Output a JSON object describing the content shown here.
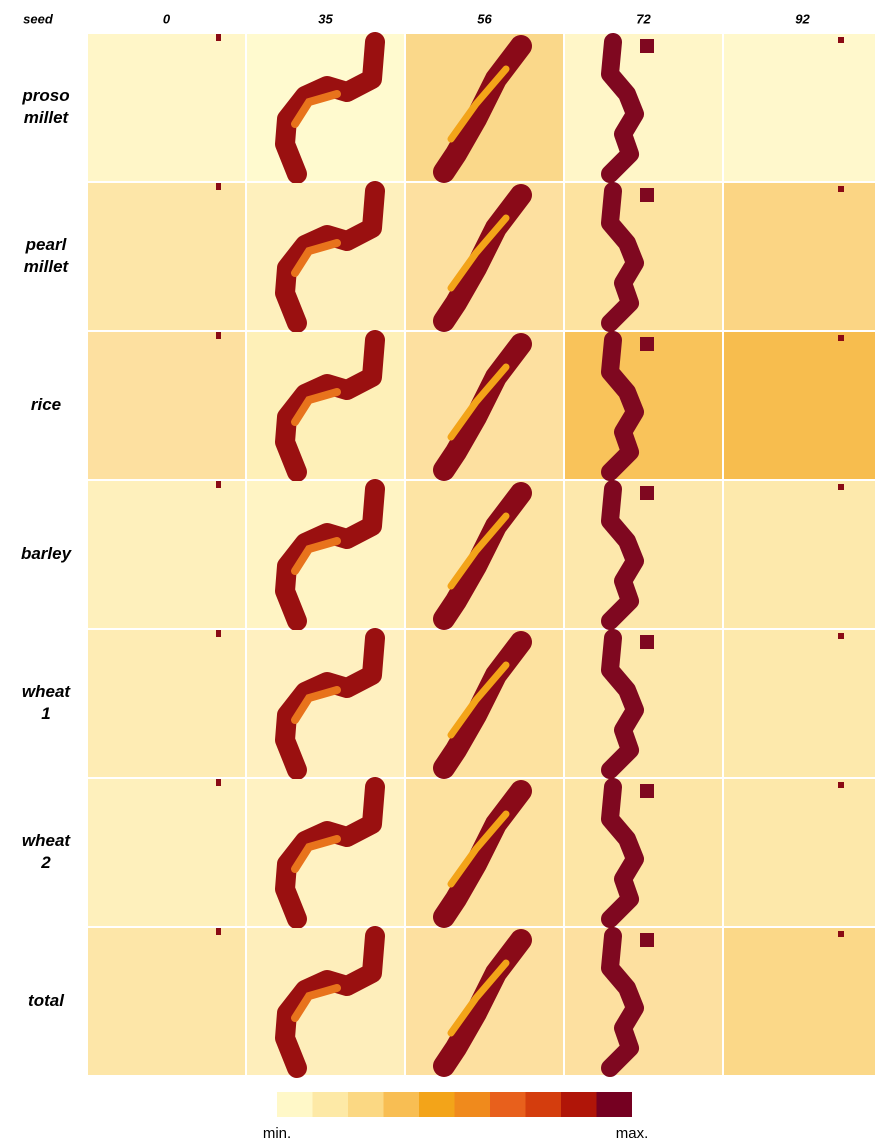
{
  "header": {
    "corner": "seed",
    "columns": [
      "0",
      "35",
      "56",
      "72",
      "92"
    ]
  },
  "rows": [
    {
      "label": [
        "proso",
        "millet"
      ],
      "colors": [
        "#fff6c8",
        "#fffacf",
        "#fad88a",
        "#fff6c8",
        "#fff8cc"
      ]
    },
    {
      "label": [
        "pearl",
        "millet"
      ],
      "colors": [
        "#fde6a8",
        "#fef0bd",
        "#fde0a0",
        "#fde3a0",
        "#fbd584"
      ]
    },
    {
      "label": [
        "rice"
      ],
      "colors": [
        "#fde0a0",
        "#fef0b8",
        "#fde0a0",
        "#f9c35a",
        "#f7bd4e"
      ]
    },
    {
      "label": [
        "barley"
      ],
      "colors": [
        "#fef0bc",
        "#fff4c4",
        "#fde4a4",
        "#fde8ac",
        "#fde9ac"
      ]
    },
    {
      "label": [
        "wheat",
        "1"
      ],
      "colors": [
        "#feecb4",
        "#fff0c0",
        "#fde2a0",
        "#fde8ac",
        "#fde9ac"
      ]
    },
    {
      "label": [
        "wheat",
        "2"
      ],
      "colors": [
        "#fef0bc",
        "#fff2c2",
        "#fde2a0",
        "#fde6a6",
        "#fde8aa"
      ]
    },
    {
      "label": [
        "total"
      ],
      "colors": [
        "#fde6a8",
        "#feeebb",
        "#fde0a0",
        "#fde0a0",
        "#fbd888"
      ]
    }
  ],
  "colorbar": {
    "colors": [
      "#fff8c8",
      "#fde9a6",
      "#fbd883",
      "#f8be53",
      "#f3a419",
      "#f08a1c",
      "#e8601c",
      "#d43d0d",
      "#b01508",
      "#750021"
    ],
    "min_label": "min.",
    "max_label": "max."
  }
}
